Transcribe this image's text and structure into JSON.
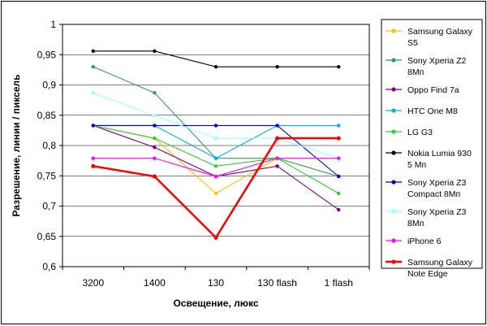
{
  "chart_data": {
    "type": "line",
    "title": "",
    "xlabel": "Освещение, люкс",
    "ylabel": "Разрешение, линии / пиксель",
    "ylim": [
      0.6,
      1
    ],
    "yticks": [
      "0,6",
      "0,65",
      "0,7",
      "0,75",
      "0,8",
      "0,85",
      "0,9",
      "0,95",
      "1"
    ],
    "categories": [
      "3200",
      "1400",
      "130",
      "130 flash",
      "1 flash"
    ],
    "grid": "horizontal",
    "legend_position": "right",
    "series": [
      {
        "name": "Samsung Galaxy S5",
        "legend_lines": [
          "Samsung Galaxy",
          "S5"
        ],
        "color": "#ffc000",
        "values": [
          0.833,
          0.812,
          0.721,
          0.779,
          0.749
        ]
      },
      {
        "name": "Sony Xperia Z2 8Мп",
        "legend_lines": [
          "Sony Xperia Z2",
          "8Мп"
        ],
        "color": "#339966",
        "values": [
          0.93,
          0.887,
          0.779,
          0.779,
          0.749
        ]
      },
      {
        "name": "Oppo Find 7a",
        "legend_lines": [
          "Oppo Find 7a"
        ],
        "color": "#800080",
        "values": [
          0.833,
          0.797,
          0.749,
          0.766,
          0.694
        ]
      },
      {
        "name": "HTC One M8",
        "legend_lines": [
          "HTC One M8"
        ],
        "color": "#00b0f0",
        "values": [
          0.833,
          0.833,
          0.779,
          0.833,
          0.833
        ]
      },
      {
        "name": "LG G3",
        "legend_lines": [
          "LG G3"
        ],
        "color": "#33cc33",
        "values": [
          0.833,
          0.812,
          0.766,
          0.779,
          0.721
        ]
      },
      {
        "name": "Nokia Lumia 930 5 Мп",
        "legend_lines": [
          "Nokia Lumia 930",
          "5 Мп"
        ],
        "color": "#000000",
        "values": [
          0.956,
          0.956,
          0.93,
          0.93,
          0.93
        ]
      },
      {
        "name": "Sony Xperia Z3 Compact 8Мп",
        "legend_lines": [
          "Sony Xperia Z3",
          "Compact 8Мп"
        ],
        "color": "#0000cc",
        "values": [
          0.833,
          0.833,
          0.833,
          0.833,
          0.749
        ]
      },
      {
        "name": "Sony Xperia Z3 8Мп",
        "legend_lines": [
          "Sony Xperia Z3",
          "8Мп"
        ],
        "color": "#99ffff",
        "values": [
          0.887,
          0.849,
          0.812,
          0.812,
          0.779
        ]
      },
      {
        "name": "iPhone 6",
        "legend_lines": [
          "iPhone 6"
        ],
        "color": "#ff00ff",
        "values": [
          0.779,
          0.779,
          0.749,
          0.779,
          0.779
        ]
      },
      {
        "name": "Samsung Galaxy Note Edge",
        "legend_lines": [
          "Samsung Galaxy",
          "Note Edge"
        ],
        "color": "#ff0000",
        "bold": true,
        "values": [
          0.766,
          0.749,
          0.648,
          0.812,
          0.812
        ]
      }
    ]
  }
}
